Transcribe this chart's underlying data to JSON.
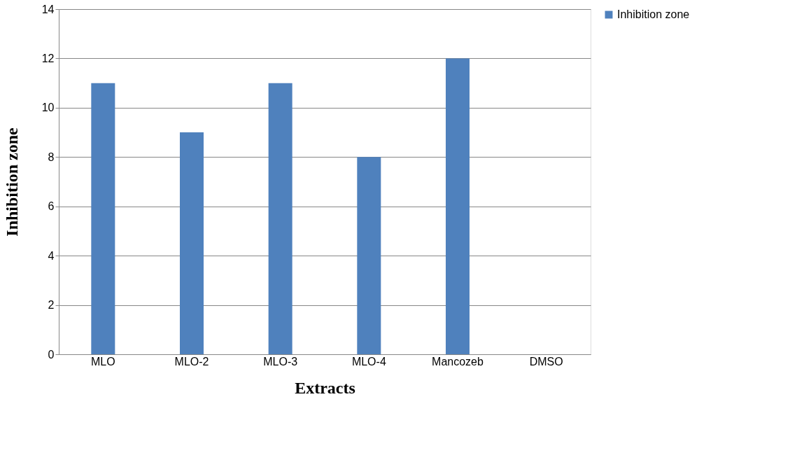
{
  "chart_data": {
    "type": "bar",
    "xlabel": "Extracts",
    "ylabel": "Inhibition zone",
    "categories": [
      "MLO",
      "MLO-2",
      "MLO-3",
      "MLO-4",
      "Mancozeb",
      "DMSO"
    ],
    "series": [
      {
        "name": "Inhibition zone",
        "color": "#4f81bd",
        "values": [
          11,
          9,
          11,
          8,
          12,
          0
        ]
      }
    ],
    "ylim": [
      0,
      14
    ],
    "yticks": [
      0,
      2,
      4,
      6,
      8,
      10,
      12,
      14
    ],
    "grid": "y",
    "legend": "right"
  }
}
